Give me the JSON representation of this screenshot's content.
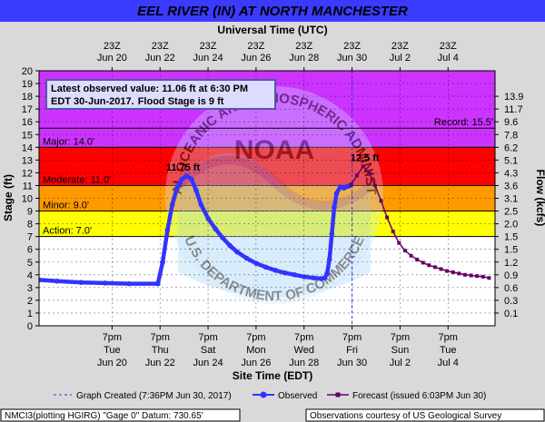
{
  "chart_data": {
    "type": "line",
    "title": "EEL RIVER (IN) AT NORTH MANCHESTER",
    "top_axis_title": "Universal Time (UTC)",
    "bottom_axis_title": "Site Time (EDT)",
    "ylabel": "Stage (ft)",
    "y2label": "Flow (kcfs)",
    "ylim": [
      0,
      20
    ],
    "xlim": [
      -3.25,
      15.75
    ],
    "x_unit": "days from Jun 20 12:00 AM EDT",
    "top_ticks": [
      {
        "x": -0.2083,
        "l1": "23Z",
        "l2": "Jun 20"
      },
      {
        "x": 1.7917,
        "l1": "23Z",
        "l2": "Jun 22"
      },
      {
        "x": 3.7917,
        "l1": "23Z",
        "l2": "Jun 24"
      },
      {
        "x": 5.7917,
        "l1": "23Z",
        "l2": "Jun 26"
      },
      {
        "x": 7.7917,
        "l1": "23Z",
        "l2": "Jun 28"
      },
      {
        "x": 9.7917,
        "l1": "23Z",
        "l2": "Jun 30"
      },
      {
        "x": 11.7917,
        "l1": "23Z",
        "l2": "Jul 2"
      },
      {
        "x": 13.7917,
        "l1": "23Z",
        "l2": "Jul 4"
      }
    ],
    "bottom_ticks": [
      {
        "x": -0.2083,
        "l1": "7pm",
        "l2": "Tue",
        "l3": "Jun 20"
      },
      {
        "x": 1.7917,
        "l1": "7pm",
        "l2": "Thu",
        "l3": "Jun 22"
      },
      {
        "x": 3.7917,
        "l1": "7pm",
        "l2": "Sat",
        "l3": "Jun 24"
      },
      {
        "x": 5.7917,
        "l1": "7pm",
        "l2": "Mon",
        "l3": "Jun 26"
      },
      {
        "x": 7.7917,
        "l1": "7pm",
        "l2": "Wed",
        "l3": "Jun 28"
      },
      {
        "x": 9.7917,
        "l1": "7pm",
        "l2": "Fri",
        "l3": "Jun 30"
      },
      {
        "x": 11.7917,
        "l1": "7pm",
        "l2": "Sun",
        "l3": "Jul 2"
      },
      {
        "x": 13.7917,
        "l1": "7pm",
        "l2": "Tue",
        "l3": "Jul 4"
      }
    ],
    "flow_ticks": [
      {
        "y": 1,
        "label": "0.1"
      },
      {
        "y": 2,
        "label": "0.3"
      },
      {
        "y": 3,
        "label": "0.6"
      },
      {
        "y": 4,
        "label": "0.9"
      },
      {
        "y": 5,
        "label": "1.2"
      },
      {
        "y": 6,
        "label": "1.5"
      },
      {
        "y": 7,
        "label": "1.5"
      },
      {
        "y": 8,
        "label": "2.0"
      },
      {
        "y": 9,
        "label": "2.5"
      },
      {
        "y": 10,
        "label": "3.1"
      },
      {
        "y": 11,
        "label": "3.6"
      },
      {
        "y": 12,
        "label": "4.3"
      },
      {
        "y": 13,
        "label": "5.1"
      },
      {
        "y": 14,
        "label": "6.2"
      },
      {
        "y": 15,
        "label": "7.8"
      },
      {
        "y": 16,
        "label": "9.6"
      },
      {
        "y": 17,
        "label": "11.7"
      },
      {
        "y": 18,
        "label": "13.9"
      }
    ],
    "flood_bands": [
      {
        "from": 0,
        "to": 7,
        "color": "#ffffff",
        "label": ""
      },
      {
        "from": 7,
        "to": 9,
        "color": "#ffff00",
        "label": "Action: 7.0'"
      },
      {
        "from": 9,
        "to": 11,
        "color": "#ff9900",
        "label": "Minor: 9.0'"
      },
      {
        "from": 11,
        "to": 14,
        "color": "#ff0000",
        "label": "Moderate: 11.0'"
      },
      {
        "from": 14,
        "to": 20,
        "color": "#cc33ff",
        "label": "Major: 14.0'"
      }
    ],
    "record": {
      "value": 15.5,
      "label": "Record: 15.5'"
    },
    "latest_obs": {
      "line1": "Latest observed value: 11.06 ft at 6:30 PM",
      "line2a": "EDT 30-Jun-2017.",
      "line2b": "Flood Stage is 9 ft"
    },
    "graph_created": {
      "x": 9.7917,
      "label": "Graph Created (7:36PM Jun 30, 2017)"
    },
    "peak_observed": {
      "x": 2.9,
      "y": 11.75,
      "label": "11.75 ft"
    },
    "peak_forecast": {
      "x": 10.25,
      "y": 12.5,
      "label": "12.5 ft"
    },
    "series": [
      {
        "name": "Observed",
        "color": "#3333ff",
        "points": [
          [
            -3.25,
            3.6
          ],
          [
            -2.5,
            3.5
          ],
          [
            -1.5,
            3.4
          ],
          [
            -0.5,
            3.35
          ],
          [
            0.5,
            3.3
          ],
          [
            1.7,
            3.3
          ],
          [
            1.9,
            5.0
          ],
          [
            2.1,
            7.5
          ],
          [
            2.3,
            9.5
          ],
          [
            2.5,
            10.8
          ],
          [
            2.7,
            11.5
          ],
          [
            2.9,
            11.75
          ],
          [
            3.1,
            11.5
          ],
          [
            3.3,
            10.6
          ],
          [
            3.5,
            9.5
          ],
          [
            3.8,
            8.4
          ],
          [
            4.1,
            7.6
          ],
          [
            4.4,
            6.9
          ],
          [
            4.7,
            6.3
          ],
          [
            5.0,
            5.8
          ],
          [
            5.4,
            5.3
          ],
          [
            5.8,
            4.9
          ],
          [
            6.2,
            4.6
          ],
          [
            6.6,
            4.35
          ],
          [
            7.0,
            4.15
          ],
          [
            7.4,
            4.0
          ],
          [
            7.8,
            3.85
          ],
          [
            8.2,
            3.75
          ],
          [
            8.5,
            3.7
          ],
          [
            8.65,
            3.75
          ],
          [
            8.75,
            4.1
          ],
          [
            8.85,
            5.2
          ],
          [
            8.95,
            7.2
          ],
          [
            9.05,
            9.3
          ],
          [
            9.15,
            10.4
          ],
          [
            9.3,
            10.9
          ],
          [
            9.45,
            10.8
          ],
          [
            9.55,
            10.9
          ],
          [
            9.65,
            10.95
          ],
          [
            9.75,
            11.06
          ]
        ]
      },
      {
        "name": "Forecast (issued 6:03PM Jun 30)",
        "color": "#660066",
        "points": [
          [
            9.75,
            11.06
          ],
          [
            10.0,
            11.8
          ],
          [
            10.25,
            12.5
          ],
          [
            10.5,
            12.0
          ],
          [
            10.75,
            11.0
          ],
          [
            11.0,
            9.8
          ],
          [
            11.25,
            8.5
          ],
          [
            11.5,
            7.4
          ],
          [
            11.75,
            6.5
          ],
          [
            12.0,
            5.9
          ],
          [
            12.25,
            5.5
          ],
          [
            12.5,
            5.2
          ],
          [
            12.75,
            4.95
          ],
          [
            13.0,
            4.75
          ],
          [
            13.25,
            4.6
          ],
          [
            13.5,
            4.45
          ],
          [
            13.75,
            4.3
          ],
          [
            14.0,
            4.2
          ],
          [
            14.25,
            4.1
          ],
          [
            14.5,
            4.0
          ],
          [
            14.75,
            3.95
          ],
          [
            15.0,
            3.9
          ],
          [
            15.25,
            3.85
          ],
          [
            15.5,
            3.75
          ]
        ]
      }
    ],
    "legend": {
      "graph_created": "Graph Created (7:36PM Jun 30, 2017)",
      "observed": "Observed",
      "forecast": "Forecast (issued 6:03PM Jun 30)"
    },
    "footer_left": "NMCI3(plotting HGIRG) \"Gage 0\" Datum: 730.65'",
    "footer_right": "Observations courtesy of US Geological Survey",
    "watermark_center": "NOAA",
    "watermark_top": "NATIONAL OCEANIC AND ATMOSPHERIC ADMINISTRATION",
    "watermark_bottom": "U.S. DEPARTMENT OF COMMERCE"
  },
  "colors": {
    "title_band": "#3b3bff",
    "title_text": "#ffffff",
    "background": "#d9d9d9",
    "observed": "#3333ff",
    "forecast": "#660066",
    "peak_obs_label": "#3333ff",
    "peak_fcst_label": "#99004c",
    "info_box_border": "#5555aa",
    "info_box_bg": "#dcdcff"
  }
}
